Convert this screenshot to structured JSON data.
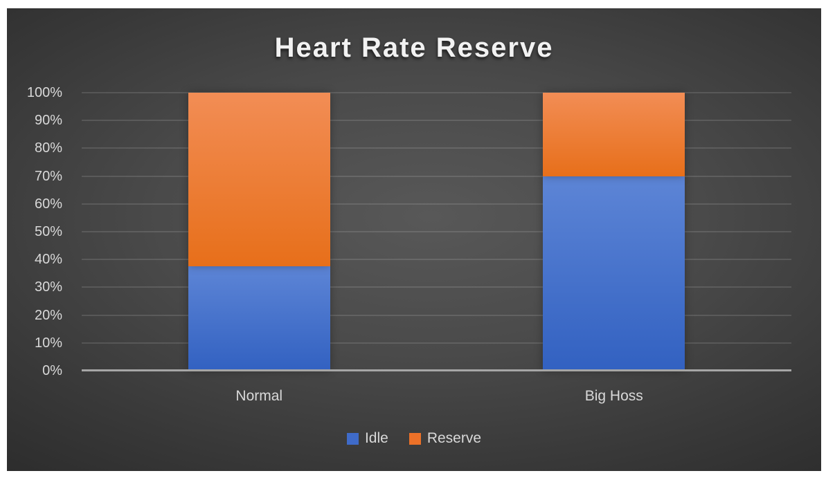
{
  "title": "Heart Rate Reserve",
  "chart_data": {
    "type": "bar",
    "stacked": true,
    "title": "Heart Rate Reserve",
    "categories": [
      "Normal",
      "Big Hoss"
    ],
    "series": [
      {
        "name": "Idle",
        "values": [
          37.5,
          70
        ],
        "color_top": "#5d85d6",
        "color_bottom": "#3261c1",
        "legend_color": "#3f6bc9"
      },
      {
        "name": "Reserve",
        "values": [
          62.5,
          30
        ],
        "color_top": "#f28d55",
        "color_bottom": "#e76f1a",
        "legend_color": "#ec7128"
      }
    ],
    "xlabel": "",
    "ylabel": "",
    "ylim": [
      0,
      100
    ],
    "ytick_step": 10,
    "ytick_labels": [
      "0%",
      "10%",
      "20%",
      "30%",
      "40%",
      "50%",
      "60%",
      "70%",
      "80%",
      "90%",
      "100%"
    ],
    "grid": true,
    "legend_position": "bottom"
  },
  "style": {
    "background_center": "#585858",
    "background_edge": "#252525",
    "axis_line_color": "#a6a6a6",
    "text_color": "#d9d9d9",
    "title_color": "#f2f2f2"
  }
}
